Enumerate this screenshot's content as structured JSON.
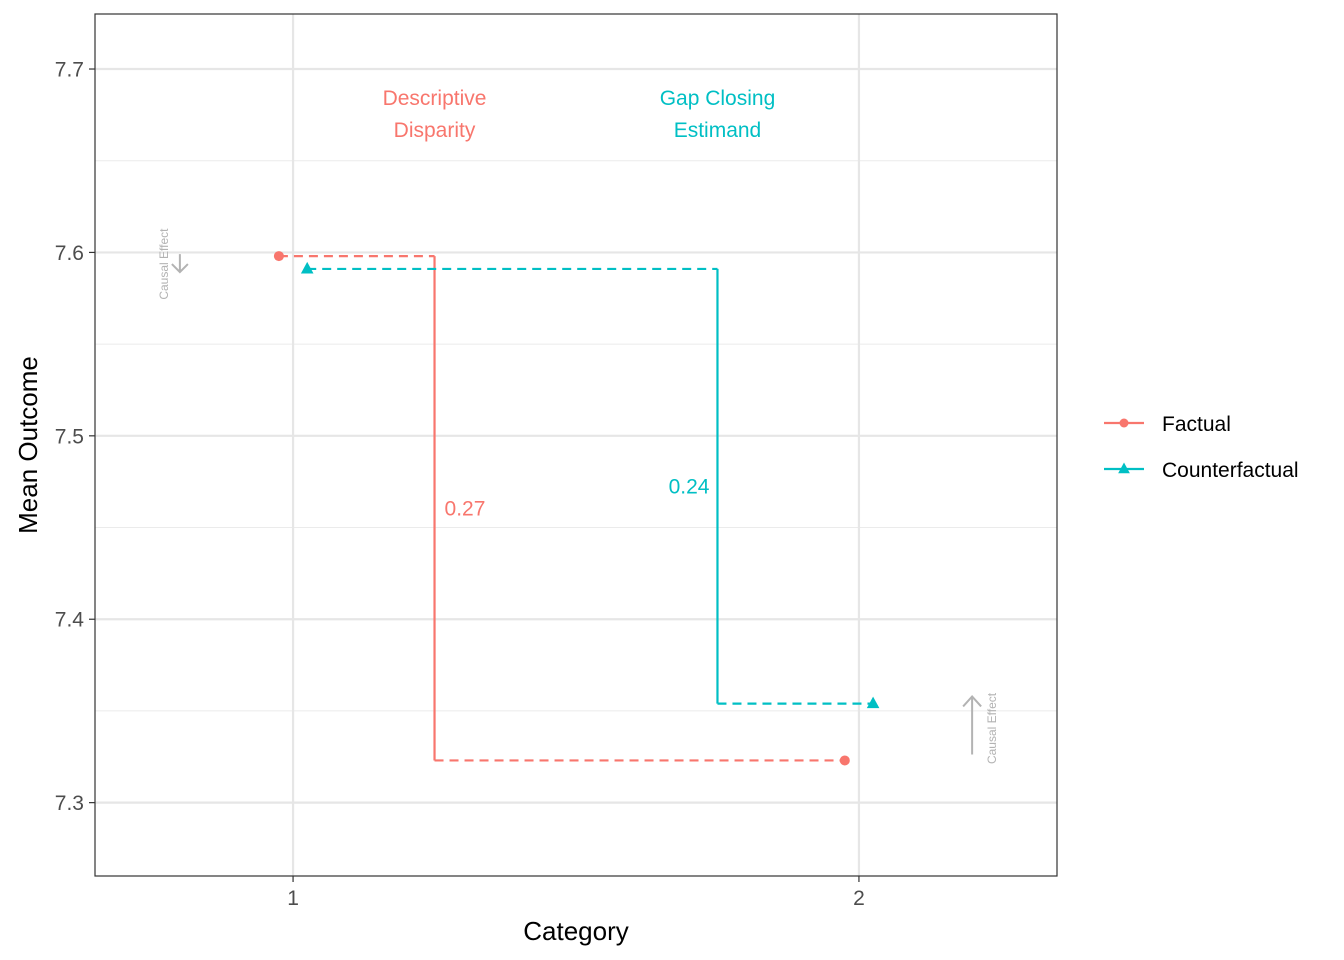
{
  "chart_data": {
    "type": "line",
    "xlabel": "Category",
    "ylabel": "Mean Outcome",
    "x_ticks": [
      "1",
      "2"
    ],
    "y_ticks": [
      "7.3",
      "7.4",
      "7.5",
      "7.6",
      "7.7"
    ],
    "xlim": [
      0.65,
      2.35
    ],
    "ylim": [
      7.26,
      7.73
    ],
    "grid": true,
    "legend_position": "right",
    "series": [
      {
        "name": "Factual",
        "marker": "circle",
        "color": "#F8766D",
        "points": [
          {
            "x": 0.975,
            "y": 7.598
          },
          {
            "x": 1.975,
            "y": 7.323
          }
        ]
      },
      {
        "name": "Counterfactual",
        "marker": "triangle",
        "color": "#00BFC4",
        "points": [
          {
            "x": 1.025,
            "y": 7.591
          },
          {
            "x": 2.025,
            "y": 7.354
          }
        ]
      }
    ],
    "annotations": {
      "descriptive_disparity": {
        "line1": "Descriptive",
        "line2": "Disparity",
        "value": "0.27",
        "x": 1.25,
        "color": "#F8766D"
      },
      "gap_closing_estimand": {
        "line1": "Gap Closing",
        "line2": "Estimand",
        "value": "0.24",
        "x": 1.75,
        "color": "#00BFC4"
      },
      "causal_effect_left": {
        "label": "Causal Effect",
        "direction": "down",
        "x": 0.8
      },
      "causal_effect_right": {
        "label": "Causal Effect",
        "direction": "up",
        "x": 2.2
      }
    }
  }
}
